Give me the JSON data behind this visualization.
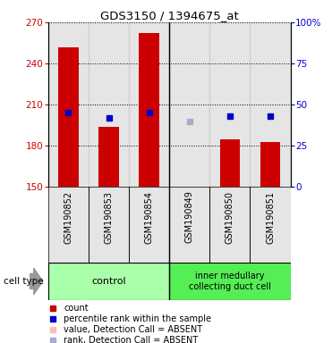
{
  "title": "GDS3150 / 1394675_at",
  "samples": [
    "GSM190852",
    "GSM190853",
    "GSM190854",
    "GSM190849",
    "GSM190850",
    "GSM190851"
  ],
  "count_values": [
    252,
    194,
    262,
    150.5,
    185,
    183
  ],
  "percentile_values": [
    45,
    42,
    45,
    40,
    43,
    43
  ],
  "detection_absent": [
    false,
    false,
    false,
    true,
    false,
    false
  ],
  "bar_bottom": 150,
  "left_ylim": [
    150,
    270
  ],
  "right_ylim": [
    0,
    100
  ],
  "left_yticks": [
    150,
    180,
    210,
    240,
    270
  ],
  "right_yticks": [
    0,
    25,
    50,
    75,
    100
  ],
  "right_yticklabels": [
    "0",
    "25",
    "50",
    "75",
    "100%"
  ],
  "left_ytick_color": "#cc0000",
  "right_ytick_color": "#0000cc",
  "bar_color": "#cc0000",
  "percentile_color_present": "#0000cc",
  "percentile_color_absent": "#aaaacc",
  "count_color_absent": "#ffbbbb",
  "group_divider": 3,
  "col_bg_color": "#cccccc",
  "cell_type_control_color": "#aaffaa",
  "cell_type_disease_color": "#55ee55",
  "legend_items": [
    {
      "label": "count",
      "color": "#cc0000"
    },
    {
      "label": "percentile rank within the sample",
      "color": "#0000cc"
    },
    {
      "label": "value, Detection Call = ABSENT",
      "color": "#ffbbbb"
    },
    {
      "label": "rank, Detection Call = ABSENT",
      "color": "#aaaacc"
    }
  ]
}
